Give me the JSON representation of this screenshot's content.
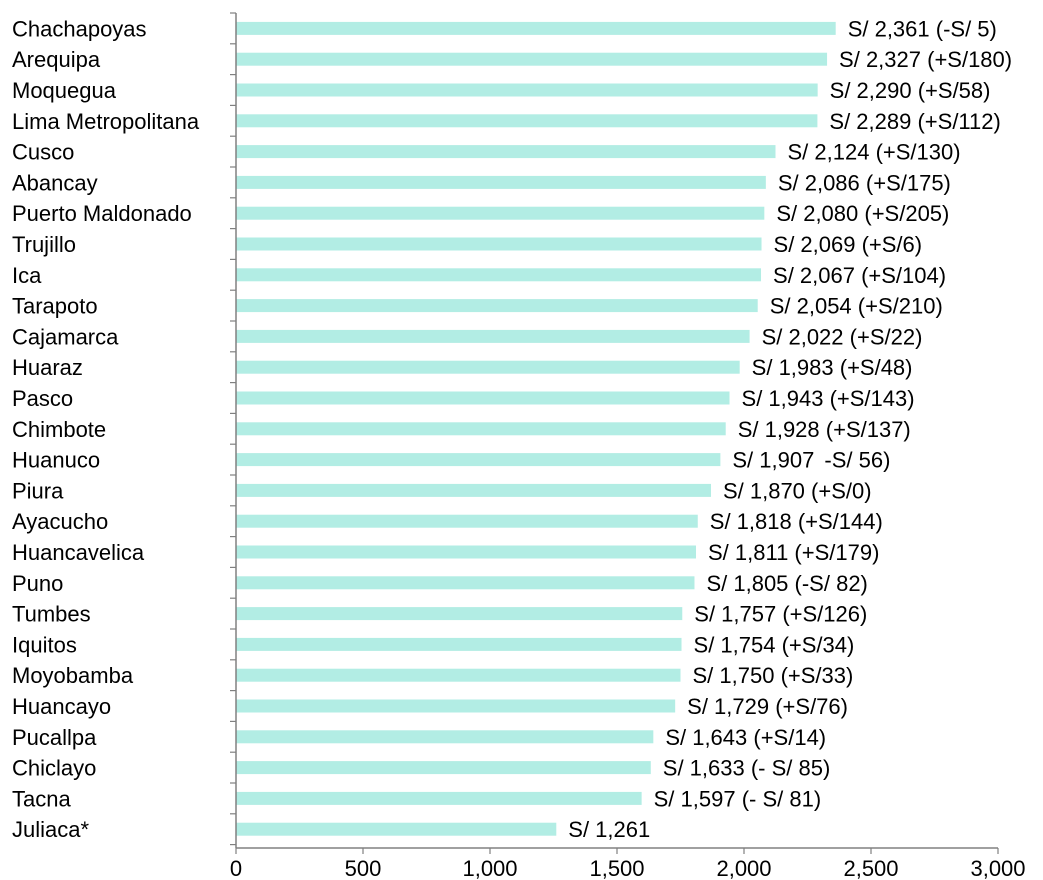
{
  "colors": {
    "bar": "#b2ede4",
    "axis": "#808080",
    "text": "#000000"
  },
  "chart_data": {
    "type": "bar",
    "orientation": "horizontal",
    "title": "",
    "xlabel": "",
    "ylabel": "",
    "xlim": [
      0,
      3000
    ],
    "x_ticks": [
      0,
      500,
      1000,
      1500,
      2000,
      2500,
      3000
    ],
    "x_tick_labels": [
      "0",
      "500",
      "1,000",
      "1,500",
      "2,000",
      "2,500",
      "3,000"
    ],
    "grid": false,
    "legend": "none",
    "categories": [
      "Chachapoyas",
      "Arequipa",
      "Moquegua",
      "Lima Metropolitana",
      "Cusco",
      "Abancay",
      "Puerto Maldonado",
      "Trujillo",
      "Ica",
      "Tarapoto",
      "Cajamarca",
      "Huaraz",
      "Pasco",
      "Chimbote",
      "Huanuco",
      "Piura",
      "Ayacucho",
      "Huancavelica",
      "Puno",
      "Tumbes",
      "Iquitos",
      "Moyobamba",
      "Huancayo",
      "Pucallpa",
      "Chiclayo",
      "Tacna",
      "Juliaca*"
    ],
    "values": [
      2361,
      2327,
      2290,
      2289,
      2124,
      2086,
      2080,
      2069,
      2067,
      2054,
      2022,
      1983,
      1943,
      1928,
      1907,
      1870,
      1818,
      1811,
      1805,
      1757,
      1754,
      1750,
      1729,
      1643,
      1633,
      1597,
      1261
    ],
    "data_labels": [
      "S/ 2,361 (-S/ 5)",
      "S/ 2,327 (+S/180)",
      "S/ 2,290 (+S/58)",
      "S/ 2,289 (+S/112)",
      "S/ 2,124 (+S/130)",
      "S/ 2,086 (+S/175)",
      "S/ 2,080 (+S/205)",
      "S/ 2,069 (+S/6)",
      "S/ 2,067 (+S/104)",
      "S/ 2,054 (+S/210)",
      "S/ 2,022 (+S/22)",
      "S/ 1,983 (+S/48)",
      "S/ 1,943 (+S/143)",
      "S/ 1,928 (+S/137)",
      "S/ 1,907",
      "S/ 1,870 (+S/0)",
      "S/ 1,818 (+S/144)",
      "S/ 1,811 (+S/179)",
      "S/ 1,805 (-S/ 82)",
      "S/ 1,757 (+S/126)",
      "S/ 1,754 (+S/34)",
      "S/ 1,750 (+S/33)",
      "S/ 1,729 (+S/76)",
      "S/ 1,643 (+S/14)",
      "S/ 1,633 (- S/ 85)",
      "S/ 1,597 (- S/ 81)",
      "S/ 1,261"
    ],
    "overlapping_label": {
      "index": 14,
      "text": "-S/ 56)"
    }
  }
}
